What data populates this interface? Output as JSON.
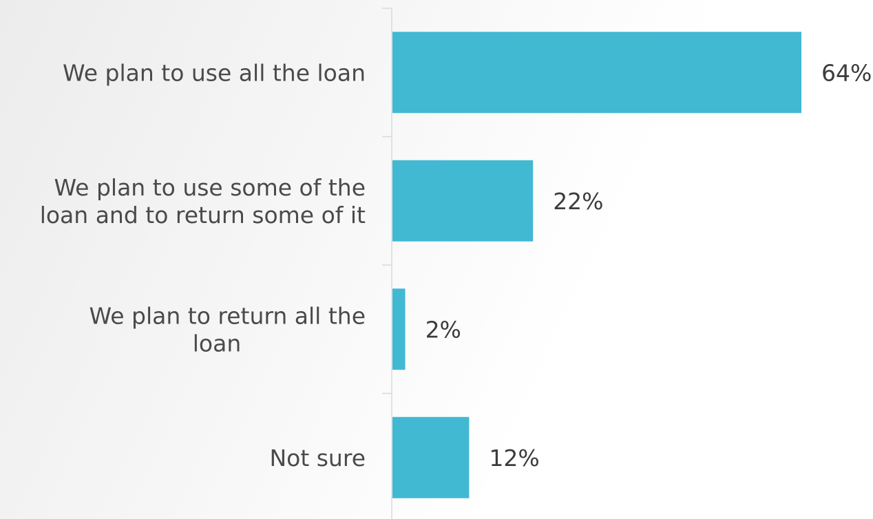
{
  "chart_data": {
    "type": "bar",
    "orientation": "horizontal",
    "categories": [
      "We plan to use all the loan",
      "We plan to use some of the loan and to return some of it",
      "We plan to return all the loan",
      "Not sure"
    ],
    "category_label_lines": [
      [
        "We plan to use all the loan"
      ],
      [
        "We plan to use some of the",
        "loan and to return some of it"
      ],
      [
        "We plan to return all the",
        "loan"
      ],
      [
        "Not sure"
      ]
    ],
    "values": [
      64,
      22,
      2,
      12
    ],
    "data_labels": [
      "64%",
      "22%",
      "2%",
      "12%"
    ],
    "title": "",
    "xlabel": "",
    "ylabel": "",
    "xlim": [
      0,
      70
    ],
    "grid": false,
    "legend": "none",
    "bar_color": "#41b9d3",
    "axis_color": "#d9d9d9"
  }
}
